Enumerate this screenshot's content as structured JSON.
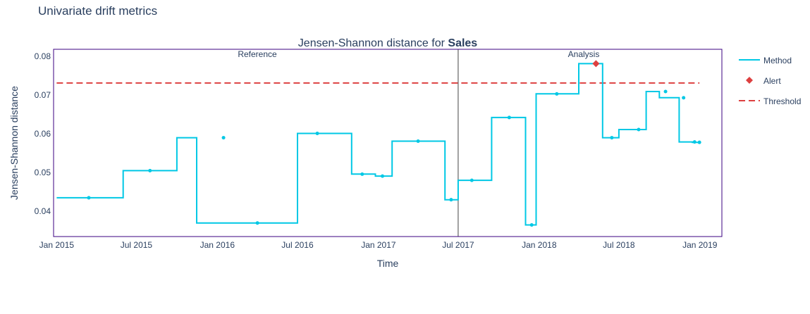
{
  "page_title": "Univariate drift metrics",
  "chart_data": {
    "type": "line",
    "line_shape": "step",
    "title_prefix": "Jensen-Shannon distance for ",
    "title_bold": "Sales",
    "xlabel": "Time",
    "ylabel": "Jensen-Shannon distance",
    "x_ticks": [
      "Jan 2015",
      "Jul 2015",
      "Jan 2016",
      "Jul 2016",
      "Jan 2017",
      "Jul 2017",
      "Jan 2018",
      "Jul 2018",
      "Jan 2019"
    ],
    "x_tick_dates": [
      "2015-01-01",
      "2015-07-01",
      "2016-01-01",
      "2016-07-01",
      "2017-01-01",
      "2017-07-01",
      "2018-01-01",
      "2018-07-01",
      "2019-01-01"
    ],
    "xlim": [
      "2014-12-25",
      "2019-02-20"
    ],
    "y_ticks": [
      "0.04",
      "0.05",
      "0.06",
      "0.07",
      "0.08"
    ],
    "y_tick_values": [
      0.04,
      0.05,
      0.06,
      0.07,
      0.08
    ],
    "ylim": [
      0.0335,
      0.0818
    ],
    "grid": false,
    "legend_placement": "right",
    "colors": {
      "method": "#00c8e5",
      "alert": "#dd4040",
      "threshold": "#dd4040",
      "frame": "#3b0280",
      "divider": "#444444"
    },
    "period_labels": {
      "reference": "Reference",
      "analysis": "Analysis"
    },
    "period_split": "2017-07-01",
    "threshold": 0.0731,
    "threshold_range": [
      "2015-01-01",
      "2018-12-31"
    ],
    "series": [
      {
        "name": "Method",
        "edges": [
          "2015-01-01",
          "2015-06-01",
          "2015-10-01",
          "2015-11-15",
          "2016-07-01",
          "2016-11-01",
          "2016-12-25",
          "2017-02-01",
          "2017-06-01",
          "2017-07-01",
          "2017-09-15",
          "2017-12-01",
          "2017-12-25",
          "2018-04-01",
          "2018-05-25",
          "2018-07-01",
          "2018-09-01",
          "2018-10-01",
          "2018-11-15",
          "2018-12-15",
          "2018-12-31"
        ],
        "values": [
          0.0435,
          0.0505,
          0.059,
          0.037,
          0.0601,
          0.0496,
          0.0491,
          0.0581,
          0.043,
          0.048,
          0.0642,
          0.0365,
          0.0703,
          0.0781,
          0.059,
          0.0611,
          0.0709,
          0.0693,
          0.0579,
          0.0578
        ],
        "markers": [
          "2015-03-15",
          "2015-08-01",
          "2016-01-15",
          "2016-04-01",
          "2016-08-15",
          "2016-11-25",
          "2017-01-10",
          "2017-04-01",
          "2017-06-15",
          "2017-08-01",
          "2017-10-25",
          "2017-12-15",
          "2018-02-10",
          "2018-05-10",
          "2018-06-15",
          "2018-08-15",
          "2018-10-15",
          "2018-11-25",
          "2018-12-20",
          "2018-12-31"
        ],
        "alerts": [
          13
        ]
      },
      {
        "name": "Alert"
      },
      {
        "name": "Threshold"
      }
    ]
  }
}
